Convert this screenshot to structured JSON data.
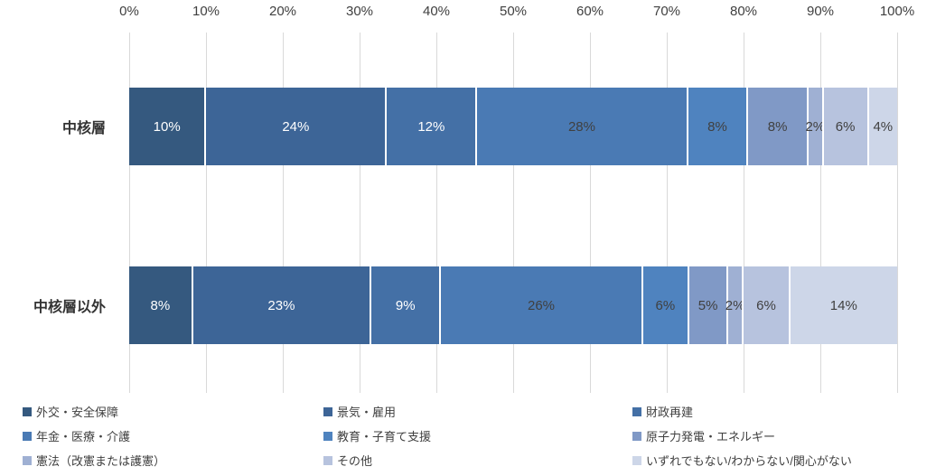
{
  "chart_data": {
    "type": "bar",
    "subtype": "stacked-horizontal-100pct",
    "title": "",
    "categories": [
      "中核層",
      "中核層以外"
    ],
    "series": [
      {
        "name": "外交・安全保障",
        "color": "#35597F",
        "label_color": "#ffffff",
        "values": [
          10,
          8
        ]
      },
      {
        "name": "景気・雇用",
        "color": "#3D6597",
        "label_color": "#ffffff",
        "values": [
          24,
          23
        ]
      },
      {
        "name": "財政再建",
        "color": "#4470A6",
        "label_color": "#ffffff",
        "values": [
          12,
          9
        ]
      },
      {
        "name": "年金・医療・介護",
        "color": "#4A7AB4",
        "label_color": "#404040",
        "values": [
          28,
          26
        ]
      },
      {
        "name": "教育・子育て支援",
        "color": "#4F83BF",
        "label_color": "#404040",
        "values": [
          8,
          6
        ]
      },
      {
        "name": "原子力発電・エネルギー",
        "color": "#8099C6",
        "label_color": "#404040",
        "values": [
          8,
          5
        ]
      },
      {
        "name": "憲法（改憲または護憲）",
        "color": "#9FB0D3",
        "label_color": "#404040",
        "values": [
          2,
          2
        ]
      },
      {
        "name": "その他",
        "color": "#B7C3DE",
        "label_color": "#404040",
        "values": [
          6,
          6
        ]
      },
      {
        "name": "いずれでもない/わからない/関心がない",
        "color": "#CDD6E8",
        "label_color": "#404040",
        "values": [
          4,
          14
        ]
      }
    ],
    "x_axis": {
      "position": "top",
      "min": 0,
      "max": 100,
      "tick_interval": 10,
      "ticks": [
        "0%",
        "10%",
        "20%",
        "30%",
        "40%",
        "50%",
        "60%",
        "70%",
        "80%",
        "90%",
        "100%"
      ]
    },
    "data_label_suffix": "%",
    "grid": true,
    "legend_position": "bottom",
    "legend_columns": 3
  },
  "layout_colors": {
    "background": "#ffffff",
    "gridline": "#d9d9d9",
    "axis_text": "#404040",
    "legend_text": "#404040",
    "category_text": "#333333",
    "segment_separator": "#ffffff"
  }
}
